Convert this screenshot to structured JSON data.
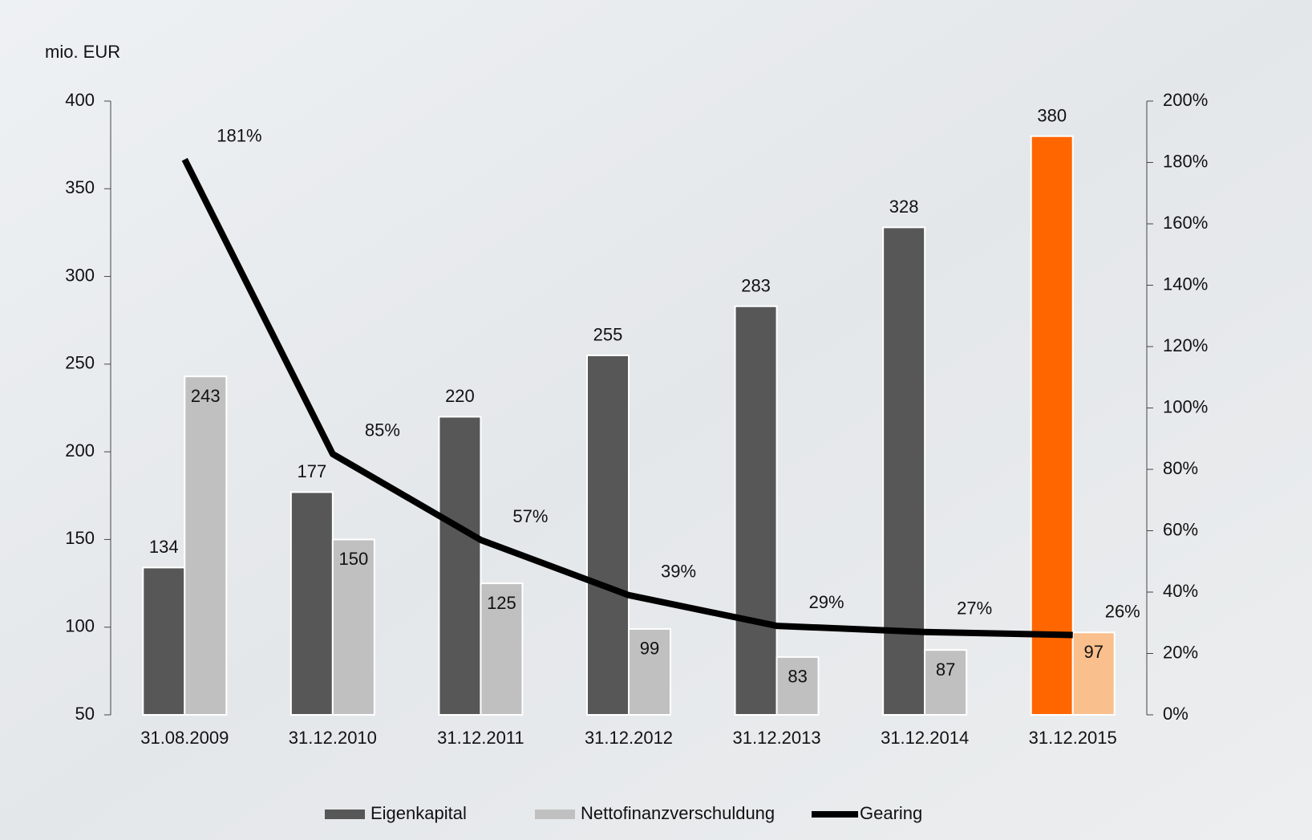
{
  "chart_data": {
    "type": "bar-line",
    "y_label": "mio. EUR",
    "categories": [
      "31.08.2009",
      "31.12.2010",
      "31.12.2011",
      "31.12.2012",
      "31.12.2013",
      "31.12.2014",
      "31.12.2015"
    ],
    "series": [
      {
        "name": "Eigenkapital",
        "color": "#575757",
        "colors": [
          "#575757",
          "#575757",
          "#575757",
          "#575757",
          "#575757",
          "#575757",
          "#ff6600"
        ],
        "values": [
          134,
          177,
          220,
          255,
          283,
          328,
          380
        ]
      },
      {
        "name": "Nettofinanzverschuldung",
        "color": "#c0c0c0",
        "colors": [
          "#c0c0c0",
          "#c0c0c0",
          "#c0c0c0",
          "#c0c0c0",
          "#c0c0c0",
          "#c0c0c0",
          "#f9bf8c"
        ],
        "values": [
          243,
          150,
          125,
          99,
          83,
          87,
          97
        ]
      },
      {
        "name": "Gearing",
        "color": "#000000",
        "axis": "y2",
        "type": "line",
        "values": [
          181,
          85,
          57,
          39,
          29,
          27,
          26
        ],
        "value_labels": [
          "181%",
          "85%",
          "57%",
          "39%",
          "29%",
          "27%",
          "26%"
        ]
      }
    ],
    "ylim": [
      50,
      400
    ],
    "yticks": [
      50,
      100,
      150,
      200,
      250,
      300,
      350,
      400
    ],
    "y2lim": [
      0,
      200
    ],
    "y2ticks": [
      {
        "value": 0,
        "label": "0%"
      },
      {
        "value": 20,
        "label": "20%"
      },
      {
        "value": 40,
        "label": "40%"
      },
      {
        "value": 60,
        "label": "60%"
      },
      {
        "value": 80,
        "label": "80%"
      },
      {
        "value": 100,
        "label": "100%"
      },
      {
        "value": 120,
        "label": "120%"
      },
      {
        "value": 140,
        "label": "140%"
      },
      {
        "value": 160,
        "label": "160%"
      },
      {
        "value": 180,
        "label": "180%"
      },
      {
        "value": 200,
        "label": "200%"
      }
    ],
    "legend": "bottom"
  }
}
